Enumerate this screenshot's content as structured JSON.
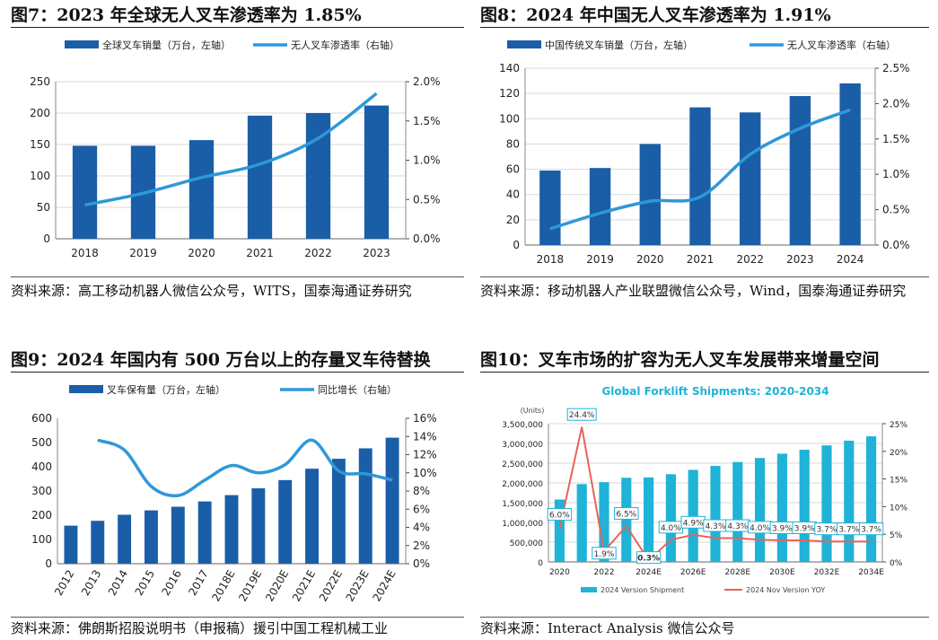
{
  "figures": [
    {
      "title": "图7：2023 年全球无人叉车渗透率为 1.85%",
      "source": "资料来源：高工移动机器人微信公众号，WITS，国泰海通证券研究",
      "chart_data": {
        "type": "bar",
        "categories": [
          "2018",
          "2019",
          "2020",
          "2021",
          "2022",
          "2023"
        ],
        "series": [
          {
            "name": "全球叉车销量（万台，左轴）",
            "type": "bar",
            "axis": "left",
            "values": [
              148,
              148,
              157,
              196,
              200,
              212
            ]
          },
          {
            "name": "无人叉车渗透率（右轴）",
            "type": "line",
            "axis": "right",
            "values": [
              0.43,
              0.58,
              0.78,
              0.95,
              1.28,
              1.85
            ]
          }
        ],
        "ylim": [
          0,
          250
        ],
        "yticks": [
          0,
          50,
          100,
          150,
          200,
          250
        ],
        "y2lim": [
          0,
          2.0
        ],
        "y2ticks": [
          "0.0%",
          "0.5%",
          "1.0%",
          "1.5%",
          "2.0%"
        ],
        "legend": "top",
        "grid": true
      }
    },
    {
      "title": "图8：2024 年中国无人叉车渗透率为 1.91%",
      "source": "资料来源：移动机器人产业联盟微信公众号，Wind，国泰海通证券研究",
      "chart_data": {
        "type": "bar",
        "categories": [
          "2018",
          "2019",
          "2020",
          "2021",
          "2022",
          "2023",
          "2024"
        ],
        "series": [
          {
            "name": "中国传统叉车销量（万台，左轴）",
            "type": "bar",
            "axis": "left",
            "values": [
              59,
              61,
              80,
              109,
              105,
              118,
              128
            ]
          },
          {
            "name": "无人叉车渗透率（右轴）",
            "type": "line",
            "axis": "right",
            "values": [
              0.23,
              0.45,
              0.62,
              0.68,
              1.28,
              1.65,
              1.91
            ]
          }
        ],
        "ylim": [
          0,
          140
        ],
        "yticks": [
          0,
          20,
          40,
          60,
          80,
          100,
          120,
          140
        ],
        "y2lim": [
          0,
          2.5
        ],
        "y2ticks": [
          "0.0%",
          "0.5%",
          "1.0%",
          "1.5%",
          "2.0%",
          "2.5%"
        ],
        "legend": "top",
        "grid": true
      }
    },
    {
      "title": "图9：2024 年国内有 500 万台以上的存量叉车待替换",
      "source": "资料来源：佛朗斯招股说明书（申报稿）援引中国工程机械工业",
      "chart_data": {
        "type": "bar",
        "categories": [
          "2012",
          "2013",
          "2014",
          "2015",
          "2016",
          "2017",
          "2018E",
          "2019E",
          "2020E",
          "2021E",
          "2022E",
          "2023E",
          "2024E"
        ],
        "series": [
          {
            "name": "叉车保有量（万台，左轴）",
            "type": "bar",
            "axis": "left",
            "values": [
              157,
              177,
              202,
              220,
              235,
              257,
              283,
              311,
              345,
              392,
              433,
              476,
              520
            ]
          },
          {
            "name": "同比增长（右轴）",
            "type": "line",
            "axis": "right",
            "values": [
              null,
              13.6,
              12.5,
              8.5,
              7.5,
              9.2,
              10.8,
              10.0,
              10.9,
              13.6,
              10.2,
              9.9,
              9.2
            ]
          }
        ],
        "ylim": [
          0,
          600
        ],
        "yticks": [
          0,
          100,
          200,
          300,
          400,
          500,
          600
        ],
        "y2lim": [
          0,
          16
        ],
        "y2ticks": [
          "0%",
          "2%",
          "4%",
          "6%",
          "8%",
          "10%",
          "12%",
          "14%",
          "16%"
        ],
        "legend": "top",
        "grid": false
      }
    },
    {
      "title": "图10：叉车市场的扩容为无人叉车发展带来增量空间",
      "source": "资料来源：Interact Analysis 微信公众号",
      "chart_data": {
        "type": "bar",
        "title": "Global Forklift Shipments: 2020-2034",
        "ylabel": "(Units)",
        "categories": [
          "2020",
          "2021",
          "2022",
          "2023",
          "2024E",
          "2025E",
          "2026E",
          "2027E",
          "2028E",
          "2029E",
          "2030E",
          "2031E",
          "2032E",
          "2033E",
          "2034E"
        ],
        "xticks": [
          "2020",
          "2022",
          "2024E",
          "2026E",
          "2028E",
          "2030E",
          "2032E",
          "2034E"
        ],
        "series": [
          {
            "name": "2024 Version Shipment",
            "type": "bar",
            "axis": "left",
            "values": [
              1580000,
              1970000,
              2020000,
              2130000,
              2140000,
              2220000,
              2330000,
              2430000,
              2530000,
              2630000,
              2740000,
              2840000,
              2950000,
              3070000,
              3180000
            ]
          },
          {
            "name": "2024 Nov Version YOY",
            "type": "line",
            "axis": "right",
            "values": [
              6.0,
              24.4,
              1.9,
              6.5,
              0.3,
              4.0,
              4.9,
              4.3,
              4.3,
              4.0,
              3.9,
              3.9,
              3.7,
              3.7,
              3.7
            ]
          }
        ],
        "data_labels": [
          "6.0%",
          "24.4%",
          "1.9%",
          "6.5%",
          "0.3%",
          "4.0%",
          "4.9%",
          "4.3%",
          "4.3%",
          "4.0%",
          "3.9%",
          "3.9%",
          "3.7%",
          "3.7%",
          "3.7%"
        ],
        "ylim": [
          0,
          3500000
        ],
        "yticks": [
          "0",
          "500,000",
          "1,000,000",
          "1,500,000",
          "2,000,000",
          "2,500,000",
          "3,000,000",
          "3,500,000"
        ],
        "y2lim": [
          0,
          25
        ],
        "y2ticks": [
          "0%",
          "5%",
          "10%",
          "15%",
          "20%",
          "25%"
        ],
        "legend": "bottom",
        "grid": true
      }
    }
  ]
}
